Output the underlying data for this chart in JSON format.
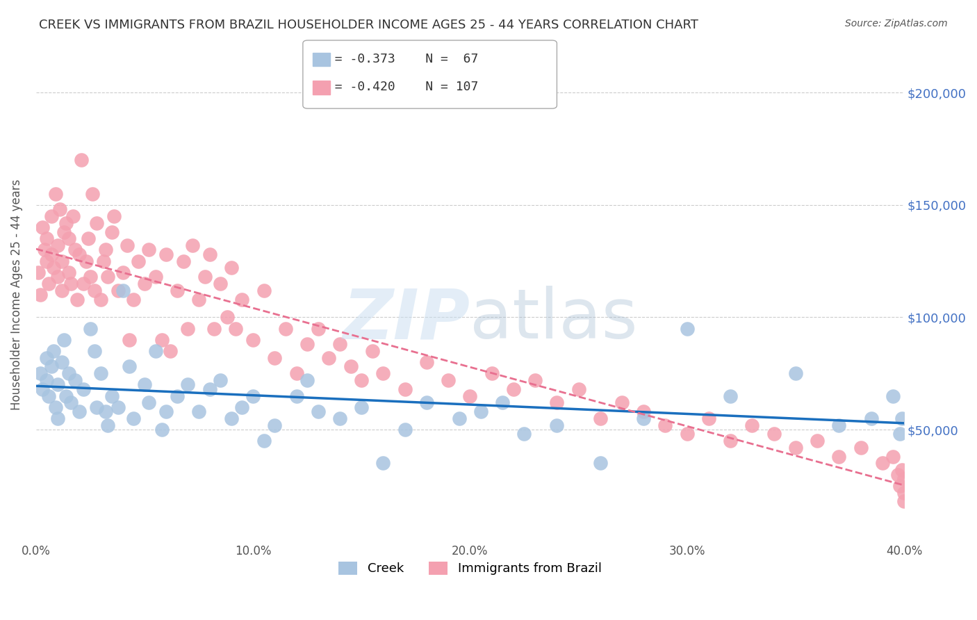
{
  "title": "CREEK VS IMMIGRANTS FROM BRAZIL HOUSEHOLDER INCOME AGES 25 - 44 YEARS CORRELATION CHART",
  "source": "Source: ZipAtlas.com",
  "ylabel": "Householder Income Ages 25 - 44 years",
  "xlabel": "",
  "xmin": 0.0,
  "xmax": 0.4,
  "ymin": 0,
  "ymax": 220000,
  "yticks": [
    50000,
    100000,
    150000,
    200000
  ],
  "ytick_labels": [
    "$50,000",
    "$100,000",
    "$150,000",
    "$200,000"
  ],
  "xticks": [
    0.0,
    0.1,
    0.2,
    0.3,
    0.4
  ],
  "xtick_labels": [
    "0.0%",
    "10.0%",
    "20.0%",
    "30.0%",
    "40.0%"
  ],
  "creek_color": "#a8c4e0",
  "brazil_color": "#f4a0b0",
  "creek_line_color": "#1a6fbe",
  "brazil_line_color": "#e87090",
  "watermark": "ZIPatlas",
  "legend_R_creek": "R = -0.373",
  "legend_N_creek": "N =  67",
  "legend_R_brazil": "R = -0.420",
  "legend_N_brazil": "N = 107",
  "creek_R": -0.373,
  "creek_N": 67,
  "brazil_R": -0.42,
  "brazil_N": 107,
  "creek_x": [
    0.002,
    0.003,
    0.005,
    0.005,
    0.006,
    0.007,
    0.008,
    0.009,
    0.01,
    0.01,
    0.012,
    0.013,
    0.014,
    0.015,
    0.016,
    0.018,
    0.02,
    0.022,
    0.025,
    0.027,
    0.028,
    0.03,
    0.032,
    0.033,
    0.035,
    0.038,
    0.04,
    0.043,
    0.045,
    0.05,
    0.052,
    0.055,
    0.058,
    0.06,
    0.065,
    0.07,
    0.075,
    0.08,
    0.085,
    0.09,
    0.095,
    0.1,
    0.105,
    0.11,
    0.12,
    0.125,
    0.13,
    0.14,
    0.15,
    0.16,
    0.17,
    0.18,
    0.195,
    0.205,
    0.215,
    0.225,
    0.24,
    0.26,
    0.28,
    0.3,
    0.32,
    0.35,
    0.37,
    0.385,
    0.395,
    0.398,
    0.399
  ],
  "creek_y": [
    75000,
    68000,
    82000,
    72000,
    65000,
    78000,
    85000,
    60000,
    70000,
    55000,
    80000,
    90000,
    65000,
    75000,
    62000,
    72000,
    58000,
    68000,
    95000,
    85000,
    60000,
    75000,
    58000,
    52000,
    65000,
    60000,
    112000,
    78000,
    55000,
    70000,
    62000,
    85000,
    50000,
    58000,
    65000,
    70000,
    58000,
    68000,
    72000,
    55000,
    60000,
    65000,
    45000,
    52000,
    65000,
    72000,
    58000,
    55000,
    60000,
    35000,
    50000,
    62000,
    55000,
    58000,
    62000,
    48000,
    52000,
    35000,
    55000,
    95000,
    65000,
    75000,
    52000,
    55000,
    65000,
    48000,
    55000
  ],
  "brazil_x": [
    0.001,
    0.002,
    0.003,
    0.004,
    0.005,
    0.005,
    0.006,
    0.007,
    0.007,
    0.008,
    0.009,
    0.01,
    0.01,
    0.011,
    0.012,
    0.012,
    0.013,
    0.014,
    0.015,
    0.015,
    0.016,
    0.017,
    0.018,
    0.019,
    0.02,
    0.021,
    0.022,
    0.023,
    0.024,
    0.025,
    0.026,
    0.027,
    0.028,
    0.03,
    0.031,
    0.032,
    0.033,
    0.035,
    0.036,
    0.038,
    0.04,
    0.042,
    0.043,
    0.045,
    0.047,
    0.05,
    0.052,
    0.055,
    0.058,
    0.06,
    0.062,
    0.065,
    0.068,
    0.07,
    0.072,
    0.075,
    0.078,
    0.08,
    0.082,
    0.085,
    0.088,
    0.09,
    0.092,
    0.095,
    0.1,
    0.105,
    0.11,
    0.115,
    0.12,
    0.125,
    0.13,
    0.135,
    0.14,
    0.145,
    0.15,
    0.155,
    0.16,
    0.17,
    0.18,
    0.19,
    0.2,
    0.21,
    0.22,
    0.23,
    0.24,
    0.25,
    0.26,
    0.27,
    0.28,
    0.29,
    0.3,
    0.31,
    0.32,
    0.33,
    0.34,
    0.35,
    0.36,
    0.37,
    0.38,
    0.39,
    0.395,
    0.397,
    0.398,
    0.399,
    0.4,
    0.4,
    0.4
  ],
  "brazil_y": [
    120000,
    110000,
    140000,
    130000,
    125000,
    135000,
    115000,
    128000,
    145000,
    122000,
    155000,
    118000,
    132000,
    148000,
    125000,
    112000,
    138000,
    142000,
    120000,
    135000,
    115000,
    145000,
    130000,
    108000,
    128000,
    170000,
    115000,
    125000,
    135000,
    118000,
    155000,
    112000,
    142000,
    108000,
    125000,
    130000,
    118000,
    138000,
    145000,
    112000,
    120000,
    132000,
    90000,
    108000,
    125000,
    115000,
    130000,
    118000,
    90000,
    128000,
    85000,
    112000,
    125000,
    95000,
    132000,
    108000,
    118000,
    128000,
    95000,
    115000,
    100000,
    122000,
    95000,
    108000,
    90000,
    112000,
    82000,
    95000,
    75000,
    88000,
    95000,
    82000,
    88000,
    78000,
    72000,
    85000,
    75000,
    68000,
    80000,
    72000,
    65000,
    75000,
    68000,
    72000,
    62000,
    68000,
    55000,
    62000,
    58000,
    52000,
    48000,
    55000,
    45000,
    52000,
    48000,
    42000,
    45000,
    38000,
    42000,
    35000,
    38000,
    30000,
    25000,
    32000,
    28000,
    22000,
    18000
  ]
}
